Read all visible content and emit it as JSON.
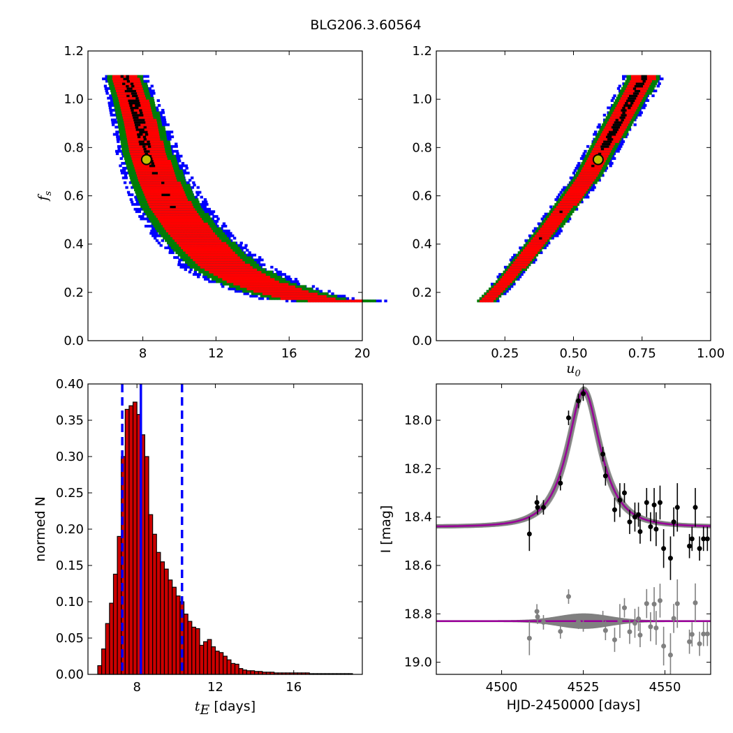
{
  "title": "BLG206.3.60564",
  "colors": {
    "red": "#ff0000",
    "green": "#008000",
    "blue": "#0000ff",
    "black": "#000000",
    "marker_face": "#bfbf00",
    "model": "#990099",
    "model_band": "#808080",
    "residual": "#808080",
    "hist_bar": "#cc0000"
  },
  "chart_data": [
    {
      "id": "fs-vs-tE",
      "type": "heatmap",
      "xlabel": "",
      "ylabel": "f_s",
      "xlim": [
        5,
        20
      ],
      "ylim": [
        0.0,
        1.2
      ],
      "xticks": [
        8,
        12,
        16,
        20
      ],
      "yticks": [
        0.0,
        0.2,
        0.4,
        0.6,
        0.8,
        1.0,
        1.2
      ],
      "xtick_labels": [
        "8",
        "12",
        "16",
        "20"
      ],
      "ytick_labels": [
        "0.0",
        "0.2",
        "0.4",
        "0.6",
        "0.8",
        "1.0",
        "1.2"
      ],
      "ylabel_sub": "s",
      "ylabel_base": "f",
      "levels": [
        "black",
        "red",
        "green",
        "blue"
      ],
      "best_fit": {
        "x": 8.2,
        "y": 0.75
      },
      "ridge": [
        [
          7.0,
          1.08
        ],
        [
          7.4,
          1.0
        ],
        [
          7.8,
          0.9
        ],
        [
          8.2,
          0.78
        ],
        [
          8.8,
          0.66
        ],
        [
          9.5,
          0.55
        ],
        [
          10.5,
          0.45
        ],
        [
          11.5,
          0.37
        ],
        [
          12.5,
          0.3
        ],
        [
          14,
          0.24
        ],
        [
          15.5,
          0.2
        ],
        [
          17,
          0.17
        ],
        [
          18.5,
          0.16
        ]
      ]
    },
    {
      "id": "fs-vs-u0",
      "type": "heatmap",
      "xlabel": "u_0",
      "ylabel": "",
      "xlim": [
        0.0,
        1.0
      ],
      "ylim": [
        0.0,
        1.2
      ],
      "xticks": [
        0.25,
        0.5,
        0.75,
        1.0
      ],
      "yticks": [
        0.0,
        0.2,
        0.4,
        0.6,
        0.8,
        1.0,
        1.2
      ],
      "xtick_labels": [
        "0.25",
        "0.50",
        "0.75",
        "1.00"
      ],
      "ytick_labels": [
        "0.0",
        "0.2",
        "0.4",
        "0.6",
        "0.8",
        "1.0",
        "1.2"
      ],
      "xlabel_base": "u",
      "xlabel_sub": "0",
      "levels": [
        "black",
        "red",
        "green",
        "blue"
      ],
      "best_fit": {
        "x": 0.59,
        "y": 0.75
      },
      "ridge": [
        [
          0.18,
          0.16
        ],
        [
          0.25,
          0.24
        ],
        [
          0.32,
          0.34
        ],
        [
          0.4,
          0.45
        ],
        [
          0.48,
          0.57
        ],
        [
          0.55,
          0.68
        ],
        [
          0.62,
          0.82
        ],
        [
          0.68,
          0.94
        ],
        [
          0.75,
          1.08
        ]
      ]
    },
    {
      "id": "tE-histogram",
      "type": "bar",
      "xlabel": "t_E [days]",
      "xlabel_base": "t",
      "xlabel_sub": "E",
      "xlabel_rest": " [days]",
      "ylabel": "normed N",
      "xlim": [
        5.5,
        19.5
      ],
      "ylim": [
        0.0,
        0.4
      ],
      "xticks": [
        8,
        12,
        16
      ],
      "yticks": [
        0.0,
        0.05,
        0.1,
        0.15,
        0.2,
        0.25,
        0.3,
        0.35,
        0.4
      ],
      "xtick_labels": [
        "8",
        "12",
        "16"
      ],
      "ytick_labels": [
        "0.00",
        "0.05",
        "0.10",
        "0.15",
        "0.20",
        "0.25",
        "0.30",
        "0.35",
        "0.40"
      ],
      "bin_start": 6.0,
      "bin_width": 0.2,
      "values": [
        0.012,
        0.035,
        0.07,
        0.098,
        0.138,
        0.19,
        0.3,
        0.365,
        0.37,
        0.375,
        0.358,
        0.33,
        0.3,
        0.22,
        0.193,
        0.168,
        0.155,
        0.145,
        0.13,
        0.12,
        0.108,
        0.1,
        0.083,
        0.073,
        0.065,
        0.063,
        0.04,
        0.045,
        0.048,
        0.038,
        0.032,
        0.03,
        0.025,
        0.02,
        0.015,
        0.014,
        0.008,
        0.006,
        0.005,
        0.005,
        0.004,
        0.004,
        0.003,
        0.003,
        0.003,
        0.002,
        0.002,
        0.002,
        0.002,
        0.002,
        0.002,
        0.002,
        0.002,
        0.002,
        0.001,
        0.001,
        0.001,
        0.001,
        0.001,
        0.001,
        0.001,
        0.001,
        0.001,
        0.001,
        0.001
      ],
      "median_line": 8.2,
      "interval_lines": [
        7.25,
        10.3
      ]
    },
    {
      "id": "light-curve",
      "type": "scatter",
      "xlabel": "HJD-2450000 [days]",
      "ylabel": "I [mag]",
      "xlim": [
        4480,
        4564
      ],
      "ylim": [
        19.05,
        17.85
      ],
      "xticks": [
        4500,
        4525,
        4550
      ],
      "yticks": [
        18.0,
        18.2,
        18.4,
        18.6,
        18.8,
        19.0
      ],
      "xtick_labels": [
        "4500",
        "4525",
        "4550"
      ],
      "ytick_labels": [
        "18.0",
        "18.2",
        "18.4",
        "18.6",
        "18.8",
        "19.0"
      ],
      "model": {
        "t0": 4525.2,
        "tE": 8.2,
        "u0": 0.59,
        "fs": 0.75,
        "baseline": 18.44
      },
      "residual_baseline": 18.83,
      "points": [
        {
          "x": 4508.5,
          "y": 18.47,
          "err": 0.07
        },
        {
          "x": 4510.8,
          "y": 18.34,
          "err": 0.03
        },
        {
          "x": 4511.0,
          "y": 18.36,
          "err": 0.03
        },
        {
          "x": 4512.8,
          "y": 18.36,
          "err": 0.03
        },
        {
          "x": 4518.0,
          "y": 18.26,
          "err": 0.03
        },
        {
          "x": 4520.5,
          "y": 17.99,
          "err": 0.03
        },
        {
          "x": 4523.5,
          "y": 17.92,
          "err": 0.03
        },
        {
          "x": 4525.0,
          "y": 17.89,
          "err": 0.03
        },
        {
          "x": 4531.0,
          "y": 18.14,
          "err": 0.03
        },
        {
          "x": 4531.8,
          "y": 18.23,
          "err": 0.04
        },
        {
          "x": 4534.6,
          "y": 18.37,
          "err": 0.05
        },
        {
          "x": 4536.2,
          "y": 18.33,
          "err": 0.07
        },
        {
          "x": 4537.6,
          "y": 18.3,
          "err": 0.04
        },
        {
          "x": 4539.2,
          "y": 18.42,
          "err": 0.05
        },
        {
          "x": 4540.8,
          "y": 18.4,
          "err": 0.06
        },
        {
          "x": 4541.9,
          "y": 18.39,
          "err": 0.05
        },
        {
          "x": 4542.4,
          "y": 18.46,
          "err": 0.05
        },
        {
          "x": 4544.4,
          "y": 18.34,
          "err": 0.06
        },
        {
          "x": 4545.6,
          "y": 18.44,
          "err": 0.06
        },
        {
          "x": 4546.7,
          "y": 18.35,
          "err": 0.07
        },
        {
          "x": 4547.3,
          "y": 18.45,
          "err": 0.07
        },
        {
          "x": 4548.5,
          "y": 18.34,
          "err": 0.07
        },
        {
          "x": 4549.6,
          "y": 18.53,
          "err": 0.08
        },
        {
          "x": 4551.7,
          "y": 18.57,
          "err": 0.09
        },
        {
          "x": 4552.7,
          "y": 18.42,
          "err": 0.06
        },
        {
          "x": 4553.8,
          "y": 18.36,
          "err": 0.1
        },
        {
          "x": 4557.5,
          "y": 18.52,
          "err": 0.05
        },
        {
          "x": 4558.3,
          "y": 18.49,
          "err": 0.05
        },
        {
          "x": 4559.3,
          "y": 18.36,
          "err": 0.08
        },
        {
          "x": 4560.6,
          "y": 18.53,
          "err": 0.05
        },
        {
          "x": 4561.8,
          "y": 18.49,
          "err": 0.05
        },
        {
          "x": 4563.0,
          "y": 18.49,
          "err": 0.05
        }
      ]
    }
  ]
}
